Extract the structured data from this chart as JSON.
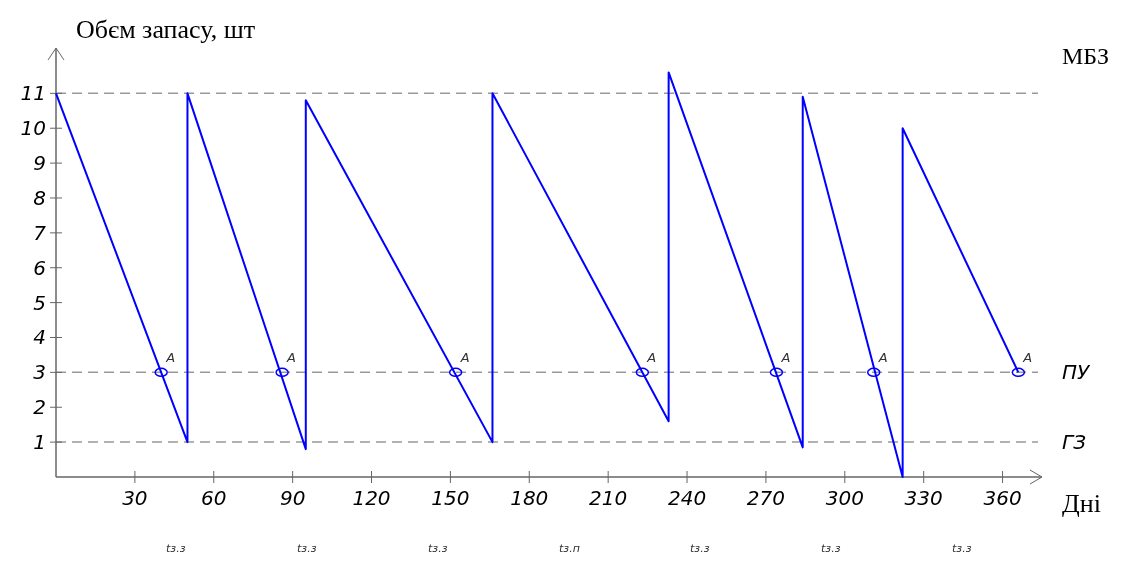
{
  "chart_data": {
    "type": "line",
    "xlabel": "Дні",
    "ylabel": "Обєм запасу, шт",
    "xlim": [
      0,
      375
    ],
    "xticks": [
      30,
      60,
      90,
      120,
      150,
      180,
      210,
      240,
      270,
      300,
      330,
      360
    ],
    "ylim": [
      0,
      12.3
    ],
    "yticks": [
      1,
      2,
      3,
      4,
      5,
      6,
      7,
      8,
      9,
      10,
      11
    ],
    "series": [
      {
        "color": "#0000ff",
        "x": [
          0,
          50,
          50,
          95,
          95,
          166,
          166,
          233,
          233,
          284,
          284,
          322,
          322,
          366
        ],
        "values": [
          11,
          1,
          11,
          0.8,
          10.8,
          1,
          11,
          1.6,
          11.6,
          0.85,
          10.9,
          0,
          10,
          3
        ]
      },
      {
        "type": "scatter",
        "color": "#0000ff",
        "marker": "circle",
        "x": [
          40,
          86,
          152,
          223,
          274,
          311,
          366
        ],
        "values": [
          3,
          3,
          3,
          3,
          3,
          3,
          3
        ],
        "value_labels": [
          "A",
          "A",
          "A",
          "A",
          "A",
          "A",
          "A"
        ]
      }
    ],
    "ref_lines": [
      {
        "axis": "y",
        "value": 11,
        "label": "МБЗ",
        "color": "#999999",
        "line_style": "dashed"
      },
      {
        "axis": "y",
        "value": 3,
        "label": "ПУ",
        "color": "#999999",
        "line_style": "dashed"
      },
      {
        "axis": "y",
        "value": 1,
        "label": "ГЗ",
        "color": "#999999",
        "line_style": "dashed"
      }
    ],
    "annotations": [
      "tз.з",
      "tз.з",
      "tз.з",
      "tз.п",
      "tз.з",
      "tз.з",
      "tз.з"
    ]
  }
}
